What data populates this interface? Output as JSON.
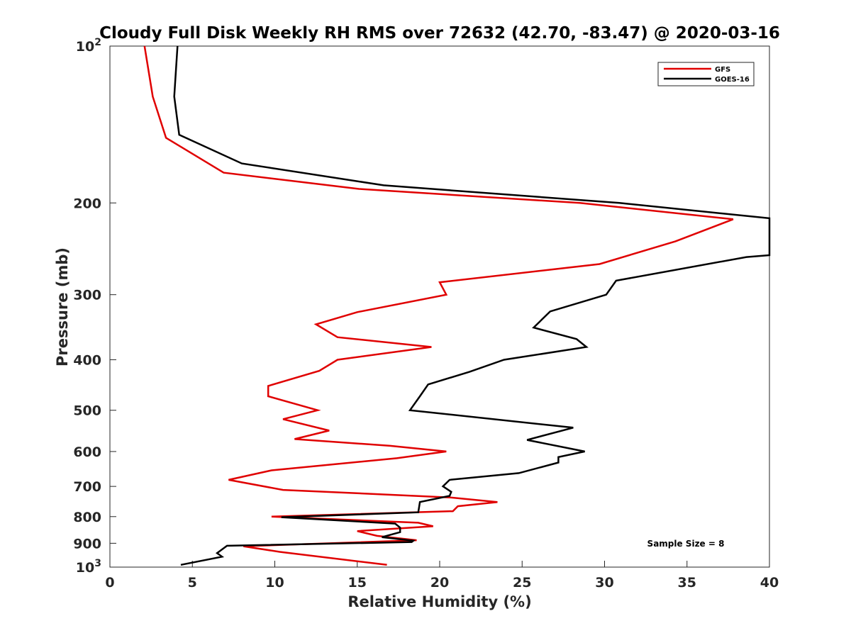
{
  "chart_data": {
    "type": "line",
    "title": "Cloudy Full Disk Weekly RH RMS over 72632 (42.70, -83.47) @ 2020-03-16",
    "xlabel": "Relative Humidity (%)",
    "ylabel": "Pressure (mb)",
    "xlim": [
      0,
      40
    ],
    "ylim": [
      100,
      1000
    ],
    "yscale": "log",
    "y_reversed": true,
    "grid": false,
    "legend_position": "top-right",
    "x_ticks": [
      "0",
      "5",
      "10",
      "15",
      "20",
      "25",
      "30",
      "35",
      "40"
    ],
    "y_ticks": [
      {
        "value": 200,
        "label": "200"
      },
      {
        "value": 300,
        "label": "300"
      },
      {
        "value": 400,
        "label": "400"
      },
      {
        "value": 500,
        "label": "500"
      },
      {
        "value": 600,
        "label": "600"
      },
      {
        "value": 700,
        "label": "700"
      },
      {
        "value": 800,
        "label": "800"
      },
      {
        "value": 900,
        "label": "900"
      }
    ],
    "y_tick_100": {
      "base": "10",
      "exp": "2"
    },
    "y_tick_1000": {
      "base": "10",
      "exp": "3"
    },
    "annotation": "Sample Size = 8",
    "series": [
      {
        "name": "GFS",
        "color": "#e00000",
        "points": [
          {
            "x": 2.1,
            "y": 100
          },
          {
            "x": 2.6,
            "y": 125
          },
          {
            "x": 3.4,
            "y": 150
          },
          {
            "x": 6.9,
            "y": 175
          },
          {
            "x": 15.1,
            "y": 188
          },
          {
            "x": 28.5,
            "y": 200
          },
          {
            "x": 37.8,
            "y": 215
          },
          {
            "x": 34.3,
            "y": 237
          },
          {
            "x": 29.7,
            "y": 262
          },
          {
            "x": 20.0,
            "y": 284
          },
          {
            "x": 20.4,
            "y": 300
          },
          {
            "x": 15.0,
            "y": 324
          },
          {
            "x": 12.5,
            "y": 342
          },
          {
            "x": 13.8,
            "y": 362
          },
          {
            "x": 19.5,
            "y": 378
          },
          {
            "x": 13.8,
            "y": 400
          },
          {
            "x": 12.7,
            "y": 420
          },
          {
            "x": 9.6,
            "y": 449
          },
          {
            "x": 9.6,
            "y": 470
          },
          {
            "x": 12.6,
            "y": 500
          },
          {
            "x": 10.5,
            "y": 520
          },
          {
            "x": 13.3,
            "y": 547
          },
          {
            "x": 11.2,
            "y": 568
          },
          {
            "x": 17.0,
            "y": 585
          },
          {
            "x": 20.4,
            "y": 600
          },
          {
            "x": 17.4,
            "y": 618
          },
          {
            "x": 9.8,
            "y": 652
          },
          {
            "x": 7.2,
            "y": 680
          },
          {
            "x": 10.5,
            "y": 711
          },
          {
            "x": 20.6,
            "y": 735
          },
          {
            "x": 23.5,
            "y": 750
          },
          {
            "x": 21.1,
            "y": 764
          },
          {
            "x": 20.8,
            "y": 781
          },
          {
            "x": 9.8,
            "y": 800
          },
          {
            "x": 18.7,
            "y": 822
          },
          {
            "x": 19.6,
            "y": 835
          },
          {
            "x": 15.0,
            "y": 853
          },
          {
            "x": 16.2,
            "y": 871
          },
          {
            "x": 18.6,
            "y": 888
          },
          {
            "x": 8.1,
            "y": 912
          },
          {
            "x": 10.3,
            "y": 935
          },
          {
            "x": 16.8,
            "y": 990
          }
        ]
      },
      {
        "name": "GOES-16",
        "color": "#000000",
        "points": [
          {
            "x": 4.1,
            "y": 100
          },
          {
            "x": 3.9,
            "y": 125
          },
          {
            "x": 4.2,
            "y": 148
          },
          {
            "x": 8.0,
            "y": 168
          },
          {
            "x": 16.6,
            "y": 185
          },
          {
            "x": 30.9,
            "y": 200
          },
          {
            "x": 40.0,
            "y": 214
          },
          {
            "x": 40.0,
            "y": 252
          },
          {
            "x": 38.6,
            "y": 254
          },
          {
            "x": 30.7,
            "y": 282
          },
          {
            "x": 30.1,
            "y": 300
          },
          {
            "x": 26.7,
            "y": 323
          },
          {
            "x": 25.7,
            "y": 347
          },
          {
            "x": 28.3,
            "y": 365
          },
          {
            "x": 28.9,
            "y": 378
          },
          {
            "x": 23.9,
            "y": 400
          },
          {
            "x": 21.8,
            "y": 422
          },
          {
            "x": 19.3,
            "y": 446
          },
          {
            "x": 18.8,
            "y": 470
          },
          {
            "x": 18.2,
            "y": 500
          },
          {
            "x": 28.1,
            "y": 540
          },
          {
            "x": 25.3,
            "y": 570
          },
          {
            "x": 28.8,
            "y": 600
          },
          {
            "x": 27.2,
            "y": 615
          },
          {
            "x": 27.2,
            "y": 630
          },
          {
            "x": 24.8,
            "y": 660
          },
          {
            "x": 20.6,
            "y": 680
          },
          {
            "x": 20.2,
            "y": 700
          },
          {
            "x": 20.7,
            "y": 717
          },
          {
            "x": 20.6,
            "y": 730
          },
          {
            "x": 18.8,
            "y": 750
          },
          {
            "x": 18.7,
            "y": 785
          },
          {
            "x": 10.4,
            "y": 802
          },
          {
            "x": 17.3,
            "y": 825
          },
          {
            "x": 17.6,
            "y": 840
          },
          {
            "x": 17.6,
            "y": 857
          },
          {
            "x": 16.5,
            "y": 876
          },
          {
            "x": 18.4,
            "y": 890
          },
          {
            "x": 18.3,
            "y": 895
          },
          {
            "x": 7.1,
            "y": 910
          },
          {
            "x": 6.5,
            "y": 940
          },
          {
            "x": 6.8,
            "y": 955
          },
          {
            "x": 4.3,
            "y": 990
          }
        ]
      }
    ]
  }
}
